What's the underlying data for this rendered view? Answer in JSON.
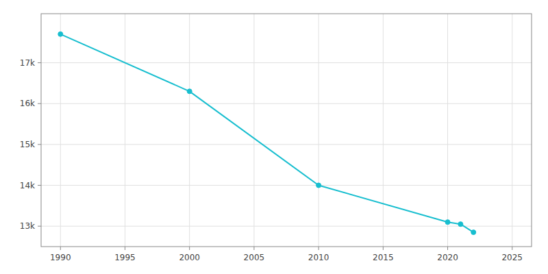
{
  "chart_data": {
    "type": "line",
    "x": [
      1990,
      2000,
      2010,
      2020,
      2021,
      2022
    ],
    "values": [
      17700,
      16300,
      14000,
      13100,
      13050,
      12850
    ],
    "color": "#17BECF",
    "marker": "circle",
    "xlim": [
      1988.5,
      2026.5
    ],
    "ylim": [
      12500,
      18200
    ],
    "xticks": [
      1990,
      1995,
      2000,
      2005,
      2010,
      2015,
      2020,
      2025
    ],
    "yticks": [
      {
        "value": 13000,
        "label": "13k"
      },
      {
        "value": 14000,
        "label": "14k"
      },
      {
        "value": 15000,
        "label": "15k"
      },
      {
        "value": 16000,
        "label": "16k"
      },
      {
        "value": 17000,
        "label": "17k"
      }
    ],
    "grid": true
  }
}
